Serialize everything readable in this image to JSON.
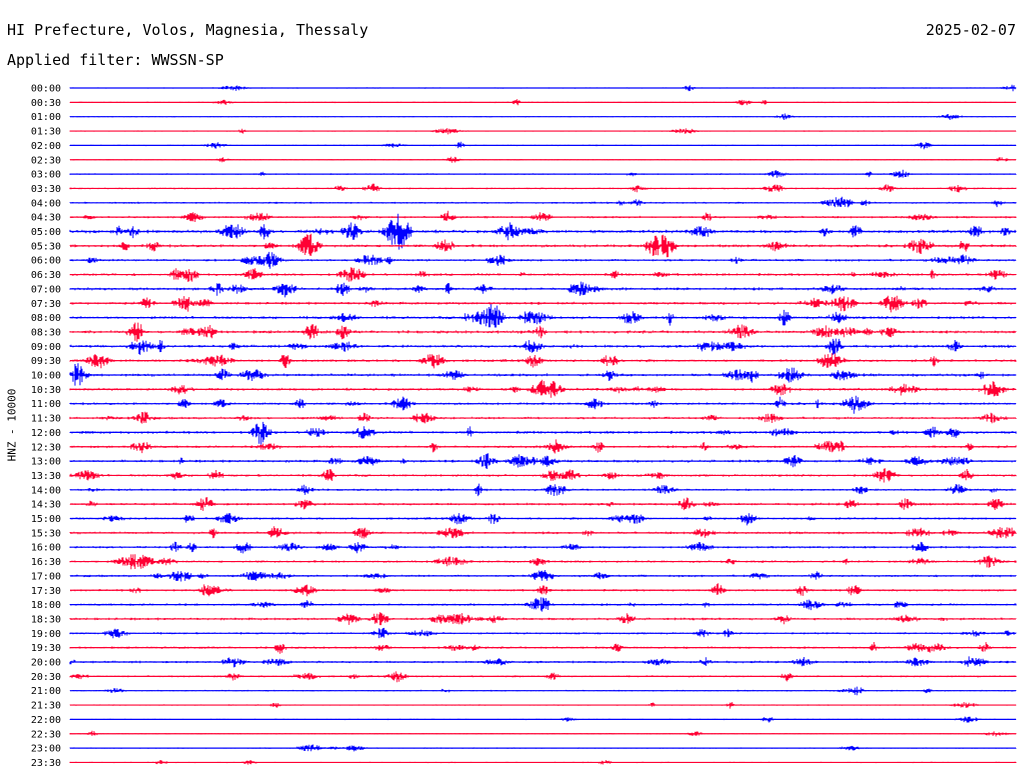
{
  "header": {
    "title": "HI Prefecture, Volos, Magnesia, Thessaly",
    "date": "2025-02-07",
    "filter_label": "Applied filter: WWSSN-SP"
  },
  "chart_data": {
    "type": "helicorder",
    "title": "HI Prefecture, Volos, Magnesia, Thessaly",
    "date": "2025-02-07",
    "filter": "WWSSN-SP",
    "ylabel": "HNZ - 10000",
    "trace_interval_minutes": 30,
    "colors": {
      "even": "#0000ff",
      "odd": "#ff0033"
    },
    "times": [
      "00:00",
      "00:30",
      "01:00",
      "01:30",
      "02:00",
      "02:30",
      "03:00",
      "03:30",
      "04:00",
      "04:30",
      "05:00",
      "05:30",
      "06:00",
      "06:30",
      "07:00",
      "07:30",
      "08:00",
      "08:30",
      "09:00",
      "09:30",
      "10:00",
      "10:30",
      "11:00",
      "11:30",
      "12:00",
      "12:30",
      "13:00",
      "13:30",
      "14:00",
      "14:30",
      "15:00",
      "15:30",
      "16:00",
      "16:30",
      "17:00",
      "17:30",
      "18:00",
      "18:30",
      "19:00",
      "19:30",
      "20:00",
      "20:30",
      "21:00",
      "21:30",
      "22:00",
      "22:30",
      "23:00",
      "23:30"
    ],
    "noise_level": [
      0.5,
      0.6,
      0.4,
      0.5,
      0.6,
      0.5,
      0.8,
      1.0,
      1.2,
      1.5,
      2.6,
      2.2,
      1.8,
      2.0,
      2.2,
      2.0,
      2.2,
      2.4,
      2.2,
      2.0,
      2.2,
      2.0,
      1.8,
      1.8,
      2.2,
      1.8,
      2.0,
      1.8,
      1.6,
      1.8,
      1.6,
      1.8,
      1.6,
      1.6,
      1.6,
      1.6,
      1.6,
      1.8,
      1.4,
      1.6,
      1.6,
      1.2,
      0.8,
      0.6,
      0.5,
      0.5,
      0.6,
      0.5
    ]
  }
}
